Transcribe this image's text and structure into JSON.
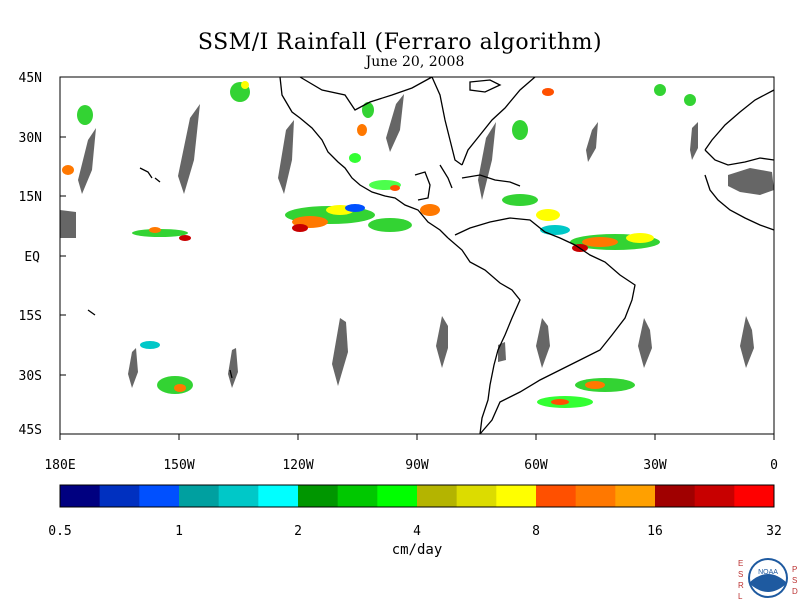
{
  "title": "SSM/I Rainfall (Ferraro algorithm)",
  "subtitle": "June 20, 2008",
  "map": {
    "lat_ticks": [
      "45N",
      "30N",
      "15N",
      "EQ",
      "15S",
      "30S",
      "45S"
    ],
    "lon_ticks": [
      "180E",
      "150W",
      "120W",
      "90W",
      "60W",
      "30W",
      "0"
    ],
    "gap_color": "#666666"
  },
  "colorbar": {
    "colors": [
      "#000080",
      "#0030C0",
      "#0050FF",
      "#00A0A0",
      "#00C8C8",
      "#00FFFF",
      "#009600",
      "#00C800",
      "#00FF00",
      "#B4B400",
      "#DCDC00",
      "#FFFF00",
      "#FF5000",
      "#FF7800",
      "#FFA000",
      "#A00000",
      "#C80000",
      "#FF0000"
    ],
    "labels": [
      "0.5",
      "1",
      "2",
      "4",
      "8",
      "16",
      "32"
    ],
    "unit": "cm/day"
  },
  "logo": {
    "left_letters": "ESRL",
    "right_letters": "PSD",
    "center_text": "NOAA"
  }
}
